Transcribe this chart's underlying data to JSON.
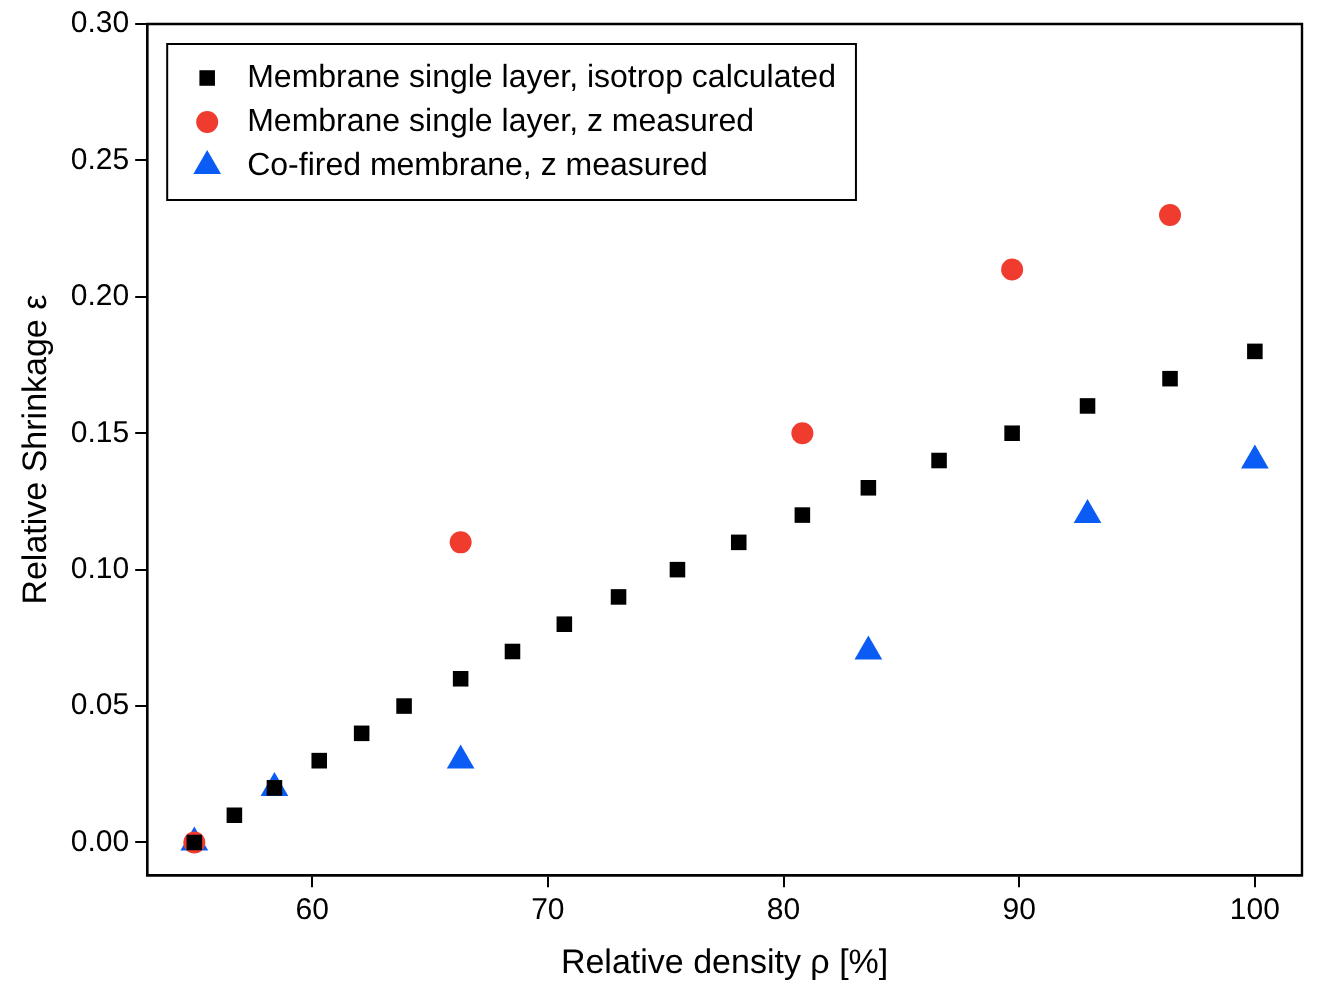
{
  "chart_data": {
    "type": "scatter",
    "xlabel": "Relative density ρ [%]",
    "ylabel": "Relative Shrinkage ε",
    "xlim": [
      53,
      102
    ],
    "ylim": [
      -0.012,
      0.3
    ],
    "xticks": [
      60,
      70,
      80,
      90,
      100
    ],
    "yticks": [
      {
        "value": 0,
        "label": "0.00"
      },
      {
        "value": 0.05,
        "label": "0.05"
      },
      {
        "value": 0.1,
        "label": "0.10"
      },
      {
        "value": 0.15,
        "label": "0.15"
      },
      {
        "value": 0.2,
        "label": "0.20"
      },
      {
        "value": 0.25,
        "label": "0.25"
      },
      {
        "value": 0.3,
        "label": "0.30"
      }
    ],
    "grid": false,
    "legend": "top left",
    "series": [
      {
        "name": "Membrane single layer, isotrop calculated",
        "color": "#000000",
        "marker": "square",
        "x": [
          55,
          56.7,
          58.4,
          60.3,
          62.1,
          63.9,
          66.3,
          68.5,
          70.7,
          73,
          75.5,
          78.1,
          80.8,
          83.6,
          86.6,
          89.7,
          92.9,
          96.4,
          100
        ],
        "values": [
          0,
          0.01,
          0.02,
          0.03,
          0.04,
          0.05,
          0.06,
          0.07,
          0.08,
          0.09,
          0.1,
          0.11,
          0.12,
          0.13,
          0.14,
          0.15,
          0.16,
          0.17,
          0.18
        ]
      },
      {
        "name": "Membrane single layer, z measured",
        "color": "#f03c2e",
        "marker": "circle",
        "x": [
          55,
          66.3,
          80.8,
          89.7,
          96.4
        ],
        "values": [
          0,
          0.11,
          0.15,
          0.21,
          0.23
        ]
      },
      {
        "name": "Co-fired membrane, z measured",
        "color": "#0a5cf5",
        "marker": "triangle",
        "x": [
          55,
          58.4,
          66.3,
          83.6,
          92.9,
          100
        ],
        "values": [
          0,
          0.02,
          0.03,
          0.07,
          0.12,
          0.14
        ]
      }
    ]
  }
}
